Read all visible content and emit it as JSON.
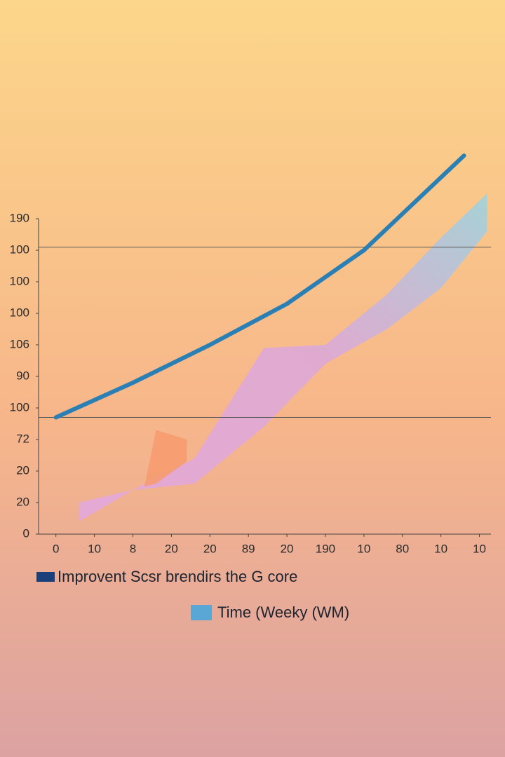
{
  "chart_data": {
    "type": "line",
    "xlim": [
      -0.45,
      11.3
    ],
    "ylim": [
      0,
      12
    ],
    "xticks": [
      {
        "value": 0,
        "label": "0"
      },
      {
        "value": 1,
        "label": "10"
      },
      {
        "value": 2,
        "label": "8"
      },
      {
        "value": 3,
        "label": "20"
      },
      {
        "value": 4,
        "label": "20"
      },
      {
        "value": 5,
        "label": "89"
      },
      {
        "value": 6,
        "label": "20"
      },
      {
        "value": 7,
        "label": "190"
      },
      {
        "value": 8,
        "label": "10"
      },
      {
        "value": 9,
        "label": "80"
      },
      {
        "value": 10,
        "label": "10"
      },
      {
        "value": 11,
        "label": "10"
      }
    ],
    "yticks": [
      {
        "value": 0,
        "label": "0"
      },
      {
        "value": 1,
        "label": "20"
      },
      {
        "value": 2,
        "label": "20"
      },
      {
        "value": 3,
        "label": "72"
      },
      {
        "value": 4,
        "label": "100"
      },
      {
        "value": 5,
        "label": "90"
      },
      {
        "value": 6,
        "label": "106"
      },
      {
        "value": 7,
        "label": "100"
      },
      {
        "value": 8,
        "label": "100"
      },
      {
        "value": 9,
        "label": "100"
      },
      {
        "value": 10,
        "label": "190"
      }
    ],
    "hlines": [
      9.1,
      3.7
    ],
    "series": [
      {
        "name": "Improvent Scsr brendirs the G core",
        "color": "#2a80b4",
        "legend_color": "#1b3f78",
        "x": [
          0,
          2,
          4,
          6,
          8,
          10.6
        ],
        "values": [
          3.7,
          4.8,
          6.0,
          7.3,
          9.0,
          12.0
        ]
      }
    ],
    "bands": [
      {
        "name": "Time (Weeky (WM)",
        "color": "#8cc8e0",
        "legend_color": "#5aa6d4",
        "x": [
          0.6,
          2,
          3.6,
          5.4,
          7,
          8.6,
          10,
          11.2
        ],
        "upper": [
          1.0,
          1.4,
          2.4,
          5.9,
          6.0,
          7.6,
          9.4,
          10.8
        ],
        "lower": [
          0.4,
          1.4,
          1.6,
          3.4,
          5.4,
          6.5,
          7.8,
          9.6
        ]
      },
      {
        "color": "#f79a6e",
        "x": [
          2.3,
          2.6,
          3.4
        ],
        "upper": [
          1.5,
          3.3,
          3.0
        ],
        "lower": [
          1.5,
          1.6,
          2.3
        ]
      }
    ]
  }
}
